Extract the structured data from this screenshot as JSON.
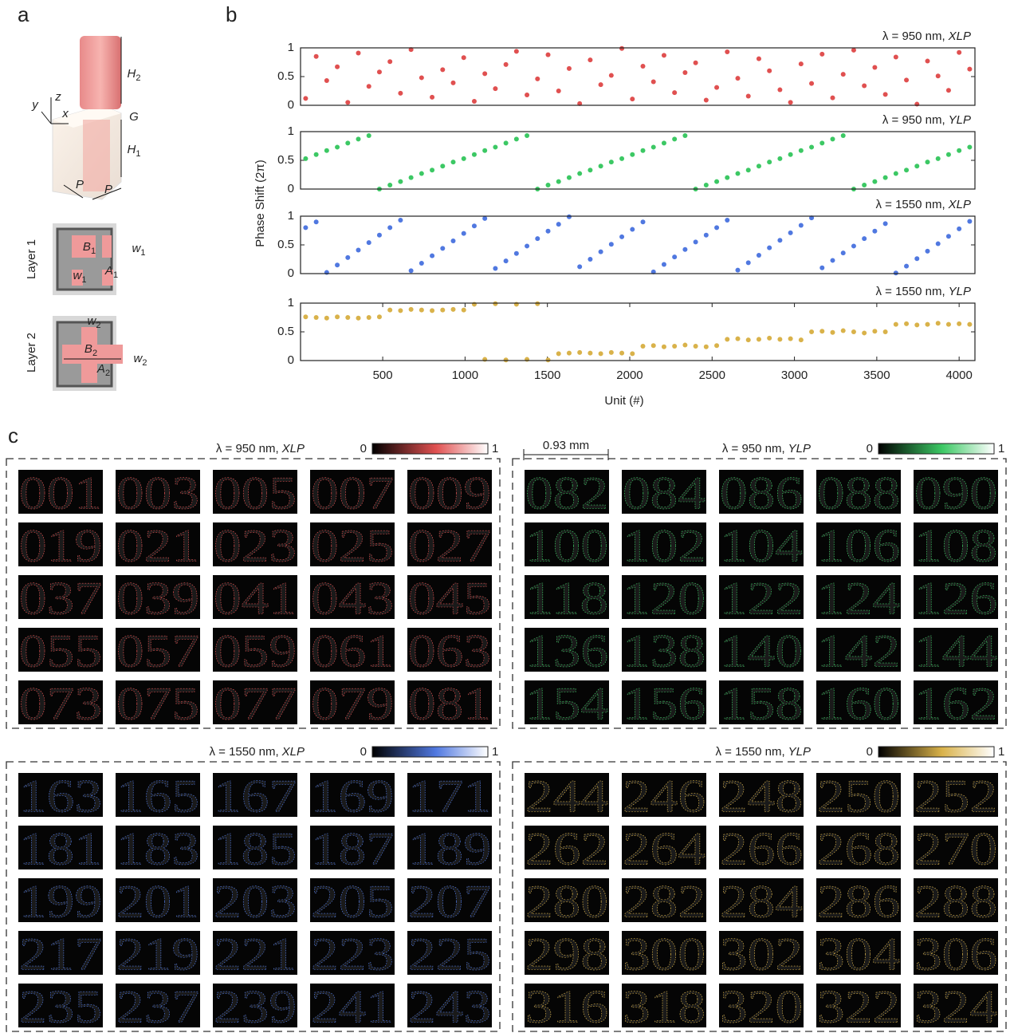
{
  "figure": {
    "panel_a": {
      "label": "a",
      "unit_cell_labels": [
        {
          "main": "H",
          "sub": "2"
        },
        {
          "main": "G"
        },
        {
          "main": "H",
          "sub": "1"
        },
        {
          "main": "P"
        },
        {
          "main": "P"
        },
        {
          "main": "z"
        },
        {
          "main": "y"
        },
        {
          "main": "x"
        }
      ],
      "layer1": {
        "title": "Layer 1",
        "labels": [
          {
            "main": "B",
            "sub": "1"
          },
          {
            "main": "w",
            "sub": "1"
          },
          {
            "main": "w",
            "sub": "1"
          },
          {
            "main": "A",
            "sub": "1"
          }
        ]
      },
      "layer2": {
        "title": "Layer 2",
        "labels": [
          {
            "main": "w",
            "sub": "2"
          },
          {
            "main": "B",
            "sub": "2"
          },
          {
            "main": "w",
            "sub": "2"
          },
          {
            "main": "A",
            "sub": "2"
          }
        ]
      }
    },
    "panel_b": {
      "label": "b"
    },
    "panel_c": {
      "label": "c",
      "scale_bar": "0.93 mm",
      "groups": [
        {
          "title": {
            "wavelength": "λ = 950 nm,",
            "polarization": "XLP"
          },
          "colorbar": {
            "min": 0,
            "max": 1
          },
          "color": "#e05050",
          "tiles": [
            "001",
            "003",
            "005",
            "007",
            "009",
            "019",
            "021",
            "023",
            "025",
            "027",
            "037",
            "039",
            "041",
            "043",
            "045",
            "055",
            "057",
            "059",
            "061",
            "063",
            "073",
            "075",
            "077",
            "079",
            "081"
          ]
        },
        {
          "title": {
            "wavelength": "λ = 950 nm,",
            "polarization": "YLP"
          },
          "colorbar": {
            "min": 0,
            "max": 1
          },
          "color": "#3cc864",
          "tiles": [
            "082",
            "084",
            "086",
            "088",
            "090",
            "100",
            "102",
            "104",
            "106",
            "108",
            "118",
            "120",
            "122",
            "124",
            "126",
            "136",
            "138",
            "140",
            "142",
            "144",
            "154",
            "156",
            "158",
            "160",
            "162"
          ]
        },
        {
          "title": {
            "wavelength": "λ = 1550 nm,",
            "polarization": "XLP"
          },
          "colorbar": {
            "min": 0,
            "max": 1
          },
          "color": "#5078e0",
          "tiles": [
            "163",
            "165",
            "167",
            "169",
            "171",
            "181",
            "183",
            "185",
            "187",
            "189",
            "199",
            "201",
            "203",
            "205",
            "207",
            "217",
            "219",
            "221",
            "223",
            "225",
            "235",
            "237",
            "239",
            "241",
            "243"
          ]
        },
        {
          "title": {
            "wavelength": "λ = 1550 nm,",
            "polarization": "YLP"
          },
          "colorbar": {
            "min": 0,
            "max": 1
          },
          "color": "#d9b24a",
          "tiles": [
            "244",
            "246",
            "248",
            "250",
            "252",
            "262",
            "264",
            "266",
            "268",
            "270",
            "280",
            "282",
            "284",
            "286",
            "288",
            "298",
            "300",
            "302",
            "304",
            "306",
            "316",
            "318",
            "320",
            "322",
            "324"
          ]
        }
      ]
    }
  },
  "chart_data": [
    {
      "type": "scatter",
      "title": {
        "wavelength": "λ = 950 nm,",
        "polarization": "XLP"
      },
      "ylabel": "Phase Shift (2π)",
      "color": "#e05050",
      "xlim": [
        1,
        4096
      ],
      "ylim": [
        0,
        1
      ],
      "yticks": [
        0,
        0.5,
        1
      ],
      "x": [
        32,
        96,
        160,
        224,
        288,
        352,
        416,
        480,
        544,
        608,
        672,
        736,
        800,
        864,
        928,
        992,
        1056,
        1120,
        1184,
        1248,
        1312,
        1376,
        1440,
        1504,
        1568,
        1632,
        1696,
        1760,
        1824,
        1888,
        1952,
        2016,
        2080,
        2144,
        2208,
        2272,
        2336,
        2400,
        2464,
        2528,
        2592,
        2656,
        2720,
        2784,
        2848,
        2912,
        2976,
        3040,
        3104,
        3168,
        3232,
        3296,
        3360,
        3424,
        3488,
        3552,
        3616,
        3680,
        3744,
        3808,
        3872,
        3936,
        4000,
        4064
      ],
      "values": [
        0.12,
        0.85,
        0.43,
        0.67,
        0.05,
        0.91,
        0.33,
        0.58,
        0.76,
        0.21,
        0.97,
        0.48,
        0.14,
        0.62,
        0.39,
        0.83,
        0.07,
        0.55,
        0.29,
        0.71,
        0.94,
        0.18,
        0.46,
        0.88,
        0.25,
        0.64,
        0.03,
        0.79,
        0.36,
        0.52,
        0.99,
        0.11,
        0.68,
        0.41,
        0.87,
        0.22,
        0.57,
        0.74,
        0.09,
        0.31,
        0.93,
        0.47,
        0.16,
        0.81,
        0.6,
        0.27,
        0.05,
        0.72,
        0.38,
        0.89,
        0.13,
        0.54,
        0.96,
        0.34,
        0.66,
        0.19,
        0.84,
        0.44,
        0.02,
        0.77,
        0.51,
        0.26,
        0.92,
        0.63
      ]
    },
    {
      "type": "scatter",
      "title": {
        "wavelength": "λ = 950 nm,",
        "polarization": "YLP"
      },
      "color": "#3cc864",
      "xlim": [
        1,
        4096
      ],
      "ylim": [
        0,
        1
      ],
      "yticks": [
        0,
        0.5,
        1
      ],
      "x": [
        32,
        96,
        160,
        224,
        288,
        352,
        416,
        480,
        544,
        608,
        672,
        736,
        800,
        864,
        928,
        992,
        1056,
        1120,
        1184,
        1248,
        1312,
        1376,
        1440,
        1504,
        1568,
        1632,
        1696,
        1760,
        1824,
        1888,
        1952,
        2016,
        2080,
        2144,
        2208,
        2272,
        2336,
        2400,
        2464,
        2528,
        2592,
        2656,
        2720,
        2784,
        2848,
        2912,
        2976,
        3040,
        3104,
        3168,
        3232,
        3296,
        3360,
        3424,
        3488,
        3552,
        3616,
        3680,
        3744,
        3808,
        3872,
        3936,
        4000,
        4064
      ],
      "values": [
        0.53,
        0.6,
        0.67,
        0.73,
        0.8,
        0.87,
        0.93,
        0,
        0.07,
        0.13,
        0.2,
        0.27,
        0.33,
        0.4,
        0.47,
        0.53,
        0.6,
        0.67,
        0.73,
        0.8,
        0.87,
        0.93,
        0,
        0.07,
        0.13,
        0.2,
        0.27,
        0.33,
        0.4,
        0.47,
        0.53,
        0.6,
        0.67,
        0.73,
        0.8,
        0.87,
        0.93,
        0,
        0.07,
        0.13,
        0.2,
        0.27,
        0.33,
        0.4,
        0.47,
        0.53,
        0.6,
        0.67,
        0.73,
        0.8,
        0.87,
        0.93,
        0,
        0.07,
        0.13,
        0.2,
        0.27,
        0.33,
        0.4,
        0.47,
        0.53,
        0.6,
        0.67,
        0.73
      ]
    },
    {
      "type": "scatter",
      "title": {
        "wavelength": "λ = 1550 nm,",
        "polarization": "XLP"
      },
      "color": "#5078e0",
      "xlim": [
        1,
        4096
      ],
      "ylim": [
        0,
        1
      ],
      "yticks": [
        0,
        0.5,
        1
      ],
      "x": [
        32,
        96,
        160,
        224,
        288,
        352,
        416,
        480,
        544,
        608,
        672,
        736,
        800,
        864,
        928,
        992,
        1056,
        1120,
        1184,
        1248,
        1312,
        1376,
        1440,
        1504,
        1568,
        1632,
        1696,
        1760,
        1824,
        1888,
        1952,
        2016,
        2080,
        2144,
        2208,
        2272,
        2336,
        2400,
        2464,
        2528,
        2592,
        2656,
        2720,
        2784,
        2848,
        2912,
        2976,
        3040,
        3104,
        3168,
        3232,
        3296,
        3360,
        3424,
        3488,
        3552,
        3616,
        3680,
        3744,
        3808,
        3872,
        3936,
        4000,
        4064
      ],
      "values": [
        0.8,
        0.9,
        0.02,
        0.15,
        0.28,
        0.41,
        0.54,
        0.67,
        0.8,
        0.93,
        0.05,
        0.18,
        0.31,
        0.44,
        0.57,
        0.7,
        0.83,
        0.96,
        0.09,
        0.22,
        0.35,
        0.48,
        0.61,
        0.74,
        0.86,
        0.99,
        0.12,
        0.25,
        0.38,
        0.51,
        0.64,
        0.77,
        0.9,
        0.03,
        0.16,
        0.29,
        0.42,
        0.55,
        0.67,
        0.8,
        0.93,
        0.06,
        0.19,
        0.32,
        0.45,
        0.58,
        0.71,
        0.84,
        0.97,
        0.1,
        0.23,
        0.36,
        0.48,
        0.61,
        0.74,
        0.87,
        0.01,
        0.13,
        0.26,
        0.39,
        0.52,
        0.65,
        0.78,
        0.91
      ]
    },
    {
      "type": "scatter",
      "title": {
        "wavelength": "λ = 1550 nm,",
        "polarization": "YLP"
      },
      "xlabel": "Unit (#)",
      "color": "#d9b24a",
      "xlim": [
        1,
        4096
      ],
      "ylim": [
        0,
        1
      ],
      "yticks": [
        0,
        0.5,
        1
      ],
      "xticks": [
        500,
        1000,
        1500,
        2000,
        2500,
        3000,
        3500,
        4000
      ],
      "x": [
        32,
        96,
        160,
        224,
        288,
        352,
        416,
        480,
        544,
        608,
        672,
        736,
        800,
        864,
        928,
        992,
        1056,
        1120,
        1184,
        1248,
        1312,
        1376,
        1440,
        1504,
        1568,
        1632,
        1696,
        1760,
        1824,
        1888,
        1952,
        2016,
        2080,
        2144,
        2208,
        2272,
        2336,
        2400,
        2464,
        2528,
        2592,
        2656,
        2720,
        2784,
        2848,
        2912,
        2976,
        3040,
        3104,
        3168,
        3232,
        3296,
        3360,
        3424,
        3488,
        3552,
        3616,
        3680,
        3744,
        3808,
        3872,
        3936,
        4000,
        4064
      ],
      "values": [
        0.76,
        0.75,
        0.74,
        0.76,
        0.75,
        0.74,
        0.75,
        0.76,
        0.88,
        0.87,
        0.89,
        0.88,
        0.87,
        0.88,
        0.89,
        0.88,
        0.98,
        0.02,
        0.99,
        0.01,
        0.98,
        0.02,
        0.99,
        0.01,
        0.12,
        0.13,
        0.14,
        0.13,
        0.12,
        0.14,
        0.13,
        0.12,
        0.25,
        0.26,
        0.24,
        0.25,
        0.27,
        0.25,
        0.24,
        0.26,
        0.37,
        0.38,
        0.36,
        0.37,
        0.39,
        0.37,
        0.38,
        0.36,
        0.5,
        0.51,
        0.49,
        0.52,
        0.5,
        0.48,
        0.51,
        0.5,
        0.63,
        0.64,
        0.62,
        0.63,
        0.65,
        0.63,
        0.64,
        0.63
      ]
    }
  ]
}
